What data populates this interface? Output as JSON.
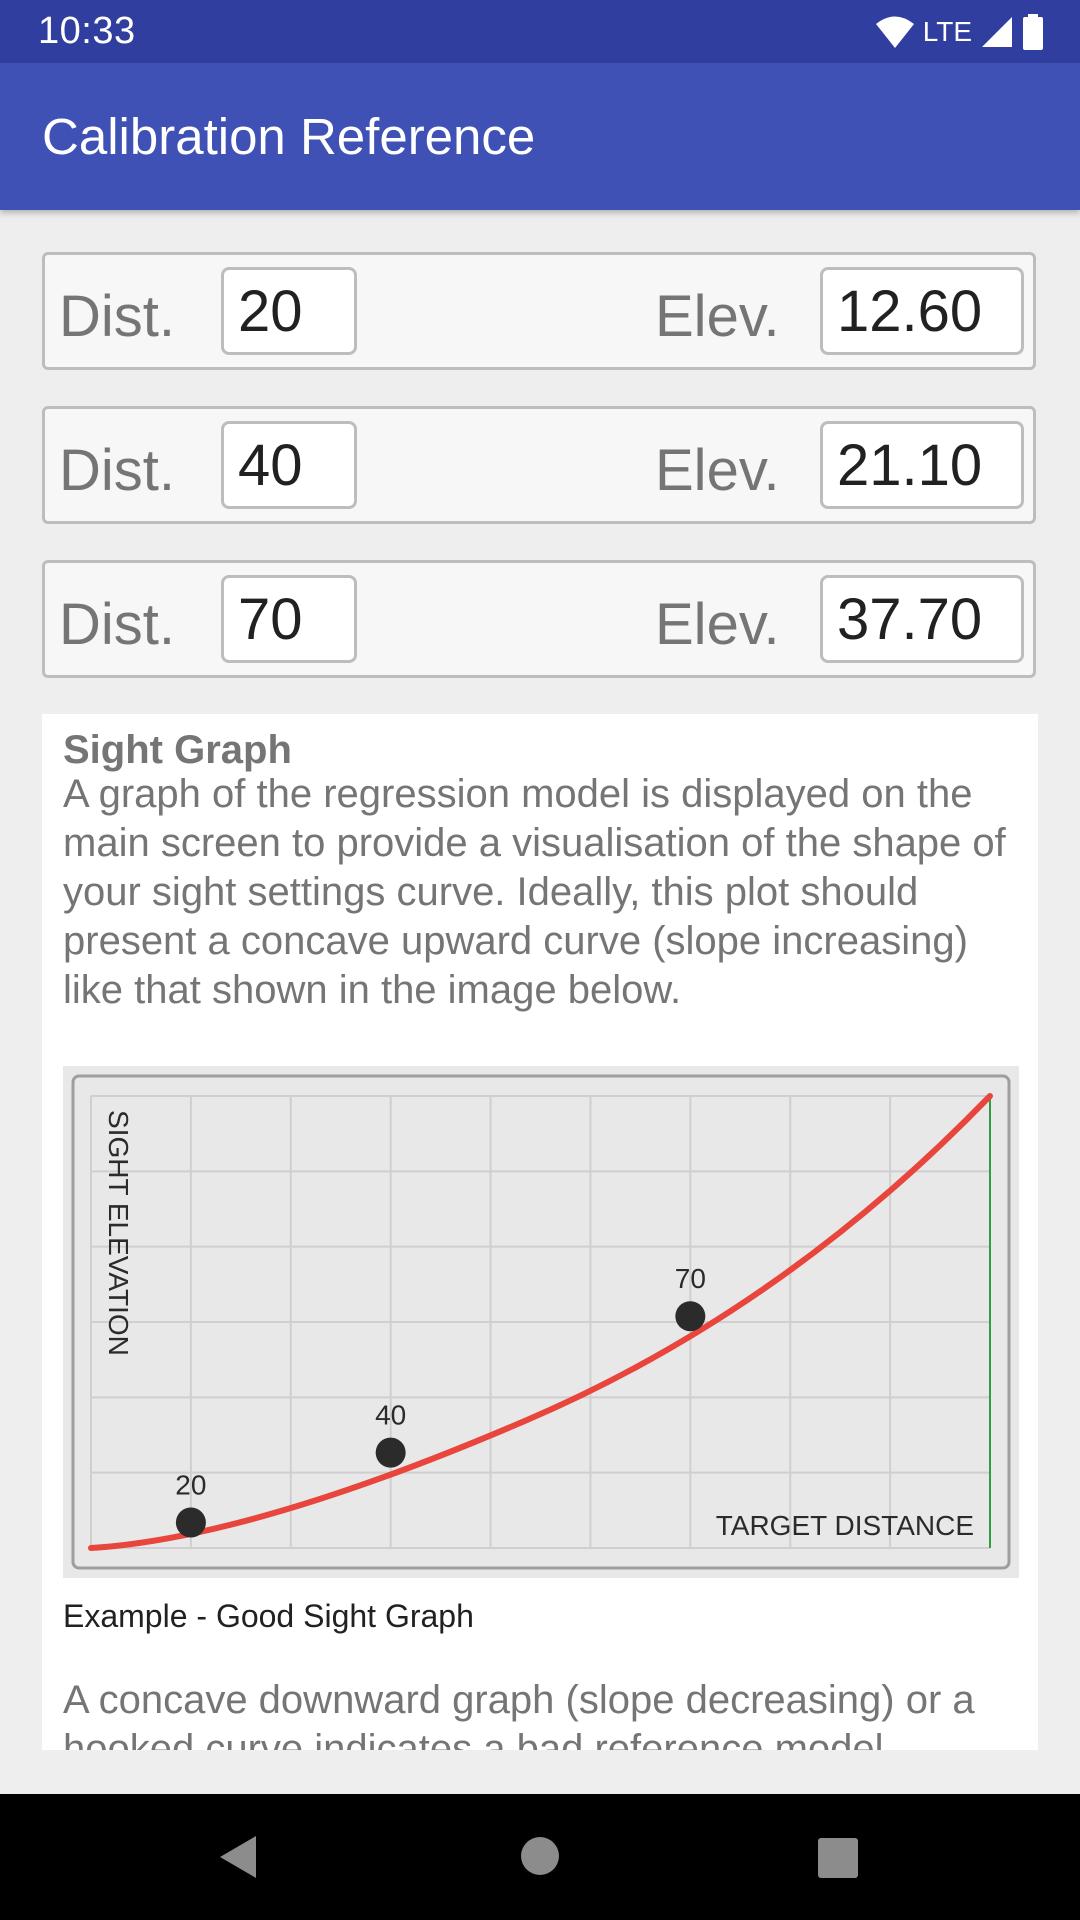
{
  "status_bar": {
    "time": "10:33",
    "network": "LTE"
  },
  "app_bar": {
    "title": "Calibration Reference"
  },
  "calibration_rows": [
    {
      "dist_label": "Dist.",
      "dist_value": "20",
      "elev_label": "Elev.",
      "elev_value": "12.60"
    },
    {
      "dist_label": "Dist.",
      "dist_value": "40",
      "elev_label": "Elev.",
      "elev_value": "21.10"
    },
    {
      "dist_label": "Dist.",
      "dist_value": "70",
      "elev_label": "Elev.",
      "elev_value": "37.70"
    }
  ],
  "sight_graph": {
    "heading": "Sight Graph",
    "paragraph": "A graph of the regression model is displayed on the main screen to provide a visualisation of the shape of your sight settings curve. Ideally, this plot should present a concave upward curve (slope increasing) like that shown in the image below.",
    "caption": "Example - Good Sight Graph",
    "paragraph2": "A concave downward graph (slope decreasing) or a hooked curve indicates a bad reference model."
  },
  "colors": {
    "status_bar": "#303f9f",
    "app_bar": "#3f51b5",
    "curve": "#e8453c",
    "right_line": "#2e9e3e",
    "point": "#2b2b2b"
  },
  "chart_data": {
    "type": "line",
    "xlabel": "TARGET DISTANCE",
    "ylabel": "SIGHT ELEVATION",
    "grid": true,
    "points": [
      {
        "x": 20,
        "y": 12.6,
        "label": "20"
      },
      {
        "x": 40,
        "y": 21.1,
        "label": "40"
      },
      {
        "x": 70,
        "y": 37.7,
        "label": "70"
      }
    ]
  }
}
